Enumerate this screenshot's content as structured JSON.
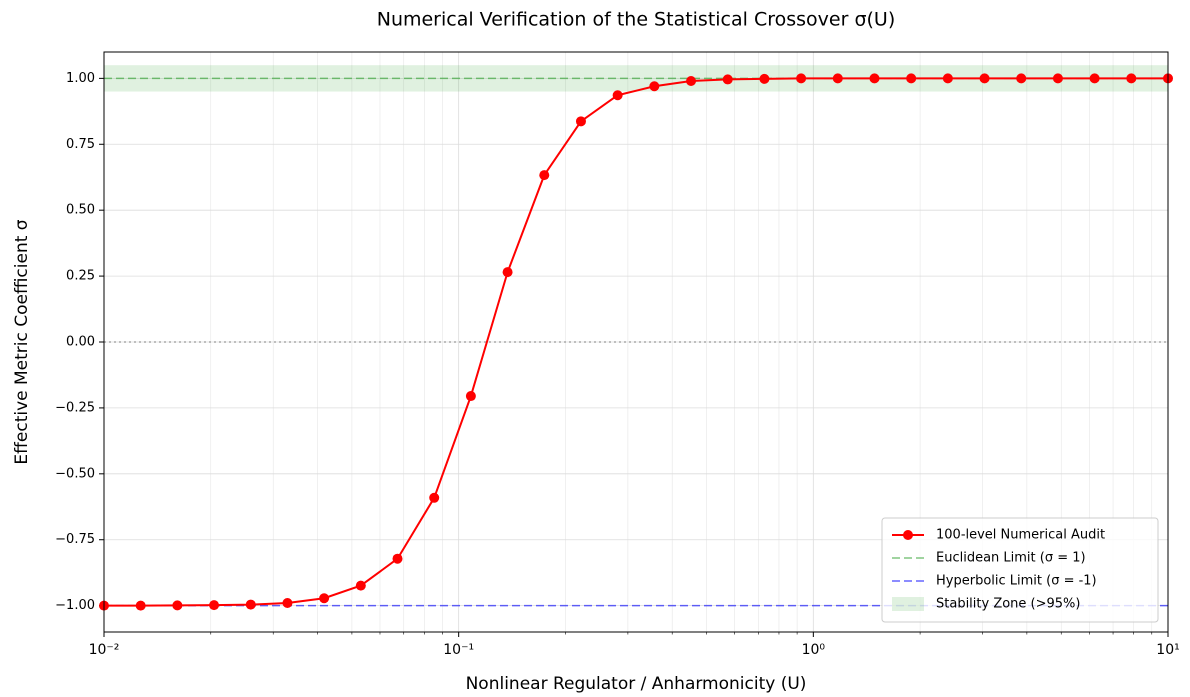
{
  "chart_data": {
    "type": "line",
    "title": "Numerical Verification of the Statistical Crossover σ(U)",
    "xlabel": "Nonlinear Regulator / Anharmonicity (U)",
    "ylabel": "Effective Metric Coefficient σ",
    "xscale": "log",
    "x": [
      0.01,
      0.01269,
      0.0161,
      0.02043,
      0.02593,
      0.0329,
      0.04175,
      0.05298,
      0.06723,
      0.08532,
      0.10826,
      0.13738,
      0.17433,
      0.22122,
      0.28072,
      0.35622,
      0.45204,
      0.57362,
      0.7279,
      0.92367,
      1.1721,
      1.4874,
      1.8874,
      2.395,
      3.0392,
      3.8566,
      4.8939,
      6.2102,
      7.8805,
      10
    ],
    "series": [
      {
        "name": "100-level Numerical Audit",
        "color": "#ff0000",
        "values": [
          -1.0,
          -1.0,
          -0.999,
          -0.998,
          -0.996,
          -0.99,
          -0.972,
          -0.924,
          -0.822,
          -0.591,
          -0.205,
          0.265,
          0.633,
          0.837,
          0.936,
          0.97,
          0.99,
          0.996,
          0.998,
          1.0,
          1.0,
          1.0,
          1.0,
          1.0,
          1.0,
          1.0,
          1.0,
          1.0,
          1.0,
          1.0
        ]
      }
    ],
    "reference_lines": [
      {
        "name": "Euclidean Limit (σ = 1)",
        "value": 1,
        "color": "#2ca02c",
        "style": "dashed"
      },
      {
        "name": "Hyperbolic Limit (σ = -1)",
        "value": -1,
        "color": "#0000ff",
        "style": "dashed"
      },
      {
        "value": 0,
        "color": "#999999",
        "style": "dotted"
      }
    ],
    "band": {
      "name": "Stability Zone (>95%)",
      "range": [
        0.95,
        1.05
      ],
      "color": "#2ca02c"
    },
    "xlim": [
      0.01,
      10
    ],
    "xticks": [
      {
        "value": 0.01,
        "label": "10⁻²"
      },
      {
        "value": 0.1,
        "label": "10⁻¹"
      },
      {
        "value": 1,
        "label": "10⁰"
      },
      {
        "value": 10,
        "label": "10¹"
      }
    ],
    "ylim": [
      -1.1,
      1.1
    ],
    "yticks": [
      {
        "value": -1,
        "label": "−1.00"
      },
      {
        "value": -0.75,
        "label": "−0.75"
      },
      {
        "value": -0.5,
        "label": "−0.50"
      },
      {
        "value": -0.25,
        "label": "−0.25"
      },
      {
        "value": 0,
        "label": "0.00"
      },
      {
        "value": 0.25,
        "label": "0.25"
      },
      {
        "value": 0.5,
        "label": "0.50"
      },
      {
        "value": 0.75,
        "label": "0.75"
      },
      {
        "value": 1,
        "label": "1.00"
      }
    ],
    "grid": true,
    "legend": "lower right"
  }
}
